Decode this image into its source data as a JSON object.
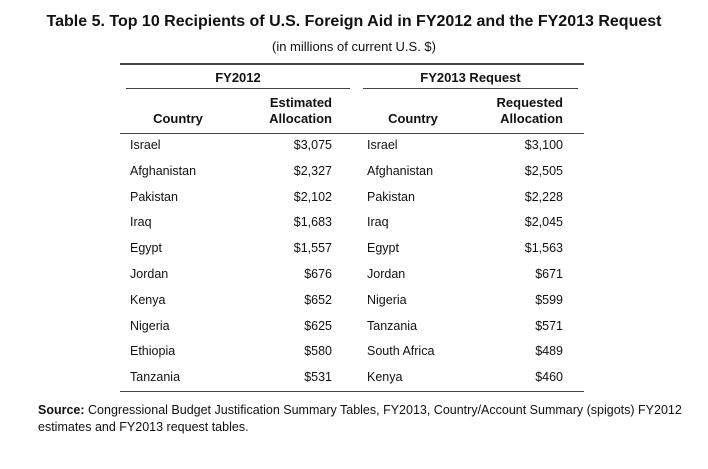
{
  "title": "Table 5. Top 10 Recipients of U.S. Foreign Aid in FY2012 and the FY2013 Request",
  "subtitle": "(in millions of current U.S. $)",
  "groups": [
    "FY2012",
    "FY2013 Request"
  ],
  "headers": {
    "country": "Country",
    "estimated": "Estimated",
    "allocation": "Allocation",
    "requested": "Requested"
  },
  "rows": [
    [
      "Israel",
      "$3,075",
      "Israel",
      "$3,100"
    ],
    [
      "Afghanistan",
      "$2,327",
      "Afghanistan",
      "$2,505"
    ],
    [
      "Pakistan",
      "$2,102",
      "Pakistan",
      "$2,228"
    ],
    [
      "Iraq",
      "$1,683",
      "Iraq",
      "$2,045"
    ],
    [
      "Egypt",
      "$1,557",
      "Egypt",
      "$1,563"
    ],
    [
      "Jordan",
      "$676",
      "Jordan",
      "$671"
    ],
    [
      "Kenya",
      "$652",
      "Nigeria",
      "$599"
    ],
    [
      "Nigeria",
      "$625",
      "Tanzania",
      "$571"
    ],
    [
      "Ethiopia",
      "$580",
      "South Africa",
      "$489"
    ],
    [
      "Tanzania",
      "$531",
      "Kenya",
      "$460"
    ]
  ],
  "source": {
    "label": "Source:",
    "text": " Congressional Budget Justification Summary Tables, FY2013, Country/Account Summary (spigots) FY2012 estimates and FY2013 request tables."
  }
}
